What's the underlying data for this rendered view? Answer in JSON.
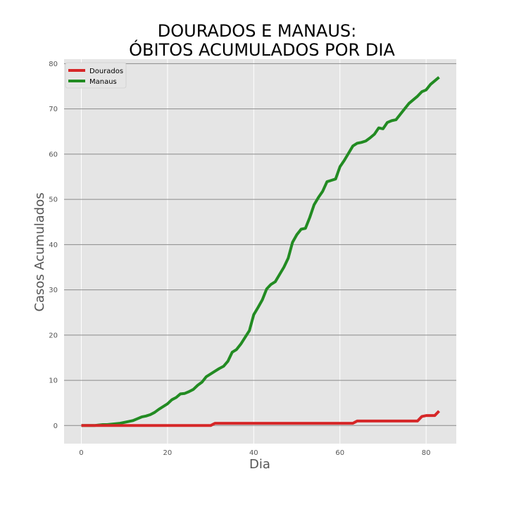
{
  "chart_data": {
    "type": "line",
    "title_lines": [
      "DOURADOS E MANAUS:",
      "ÓBITOS ACUMULADOS POR DIA"
    ],
    "xlabel": "Dia",
    "ylabel": "Casos Acumulados",
    "xlim": [
      -4,
      87
    ],
    "ylim": [
      -4,
      81
    ],
    "xticks": [
      0,
      20,
      40,
      60,
      80
    ],
    "yticks": [
      0,
      10,
      20,
      30,
      40,
      50,
      60,
      70,
      80
    ],
    "grid": true,
    "legend_position": "top-left",
    "colors": {
      "background": "#e5e5e5",
      "grid_h": "#8a8a8a",
      "grid_v": "#ffffff"
    },
    "series": [
      {
        "name": "Dourados",
        "color": "#d62728",
        "x": [
          0,
          30,
          31,
          63,
          64,
          78,
          79,
          80,
          82,
          83
        ],
        "y": [
          0,
          0,
          0.5,
          0.5,
          1,
          1,
          2,
          2.2,
          2.2,
          3.2
        ]
      },
      {
        "name": "Manaus",
        "color": "#228b22",
        "x": [
          0,
          3,
          4,
          5,
          6,
          7,
          8,
          9,
          10,
          11,
          12,
          13,
          14,
          15,
          16,
          17,
          18,
          19,
          20,
          21,
          22,
          23,
          24,
          25,
          26,
          27,
          28,
          29,
          30,
          31,
          32,
          33,
          34,
          35,
          36,
          37,
          38,
          39,
          40,
          41,
          42,
          43,
          44,
          45,
          46,
          47,
          48,
          49,
          50,
          51,
          52,
          53,
          54,
          55,
          56,
          57,
          58,
          59,
          60,
          61,
          62,
          63,
          64,
          65,
          66,
          67,
          68,
          69,
          70,
          71,
          72,
          73,
          74,
          75,
          76,
          77,
          78,
          79,
          80,
          81,
          82,
          83
        ],
        "y": [
          0,
          0,
          0.1,
          0.2,
          0.2,
          0.3,
          0.4,
          0.5,
          0.7,
          0.9,
          1.1,
          1.5,
          1.9,
          2.1,
          2.4,
          2.9,
          3.6,
          4.2,
          4.8,
          5.7,
          6.2,
          7.0,
          7.1,
          7.5,
          8.0,
          8.9,
          9.6,
          10.8,
          11.4,
          12.0,
          12.6,
          13.1,
          14.2,
          16.2,
          16.8,
          18.0,
          19.5,
          21.0,
          24.5,
          26.1,
          27.8,
          30.2,
          31.2,
          31.8,
          33.4,
          35.0,
          37.0,
          40.5,
          42.2,
          43.4,
          43.6,
          46.0,
          48.8,
          50.4,
          51.8,
          53.9,
          54.2,
          54.5,
          57.2,
          58.6,
          60.2,
          61.8,
          62.4,
          62.6,
          62.9,
          63.6,
          64.4,
          65.8,
          65.6,
          67.0,
          67.4,
          67.6,
          68.8,
          70.0,
          71.2,
          72.0,
          72.8,
          73.8,
          74.2,
          75.4,
          76.2,
          77.0
        ]
      }
    ]
  }
}
